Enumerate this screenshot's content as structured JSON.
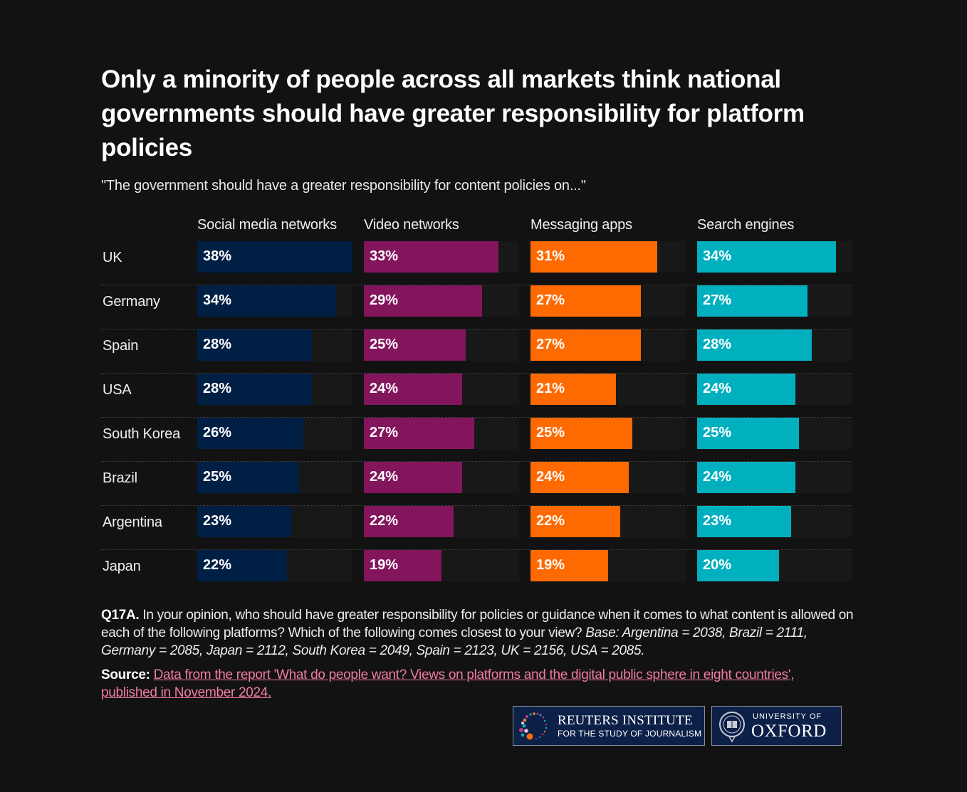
{
  "title": "Only a minority of people across all markets think national governments should have greater responsibility for platform policies",
  "subtitle": "\"The government should have a greater responsibility for content policies on...\"",
  "chart_data": {
    "type": "bar",
    "orientation": "horizontal",
    "layout": "small-multiples",
    "title": "Only a minority of people across all markets think national governments should have greater responsibility for platform policies",
    "subtitle": "\"The government should have a greater responsibility for content policies on...\"",
    "categories": [
      "UK",
      "Germany",
      "Spain",
      "USA",
      "South Korea",
      "Brazil",
      "Argentina",
      "Japan"
    ],
    "value_suffix": "%",
    "xlim": [
      0,
      38
    ],
    "grid": false,
    "legend": "none",
    "series": [
      {
        "name": "Social media networks",
        "color": "#001f45",
        "values": [
          38,
          34,
          28,
          28,
          26,
          25,
          23,
          22
        ]
      },
      {
        "name": "Video networks",
        "color": "#83155d",
        "values": [
          33,
          29,
          25,
          24,
          27,
          24,
          22,
          19
        ]
      },
      {
        "name": "Messaging apps",
        "color": "#ff6a00",
        "values": [
          31,
          27,
          27,
          21,
          25,
          24,
          22,
          19
        ]
      },
      {
        "name": "Search engines",
        "color": "#00b0bf",
        "values": [
          34,
          27,
          28,
          24,
          25,
          24,
          23,
          20
        ]
      }
    ]
  },
  "footnote": {
    "label": "Q17A.",
    "text": " In your opinion, who should have greater responsibility for policies or guidance when it comes to what content is allowed on each of the following platforms? Which of the following comes closest to your view? ",
    "base": "Base: Argentina = 2038, Brazil = 2111, Germany = 2085, Japan = 2112, South Korea = 2049, Spain = 2123, UK = 2156, USA = 2085."
  },
  "source": {
    "label": "Source:",
    "link_text": "Data from the report 'What do people want? Views on platforms and the digital public sphere in eight countries', published in November 2024."
  },
  "logos": {
    "reuters": {
      "title": "REUTERS INSTITUTE",
      "subtitle": "FOR THE STUDY OF JOURNALISM",
      "icon": "reuters-dots-icon"
    },
    "oxford": {
      "top": "UNIVERSITY OF",
      "name": "OXFORD",
      "icon": "oxford-crest-icon"
    }
  }
}
